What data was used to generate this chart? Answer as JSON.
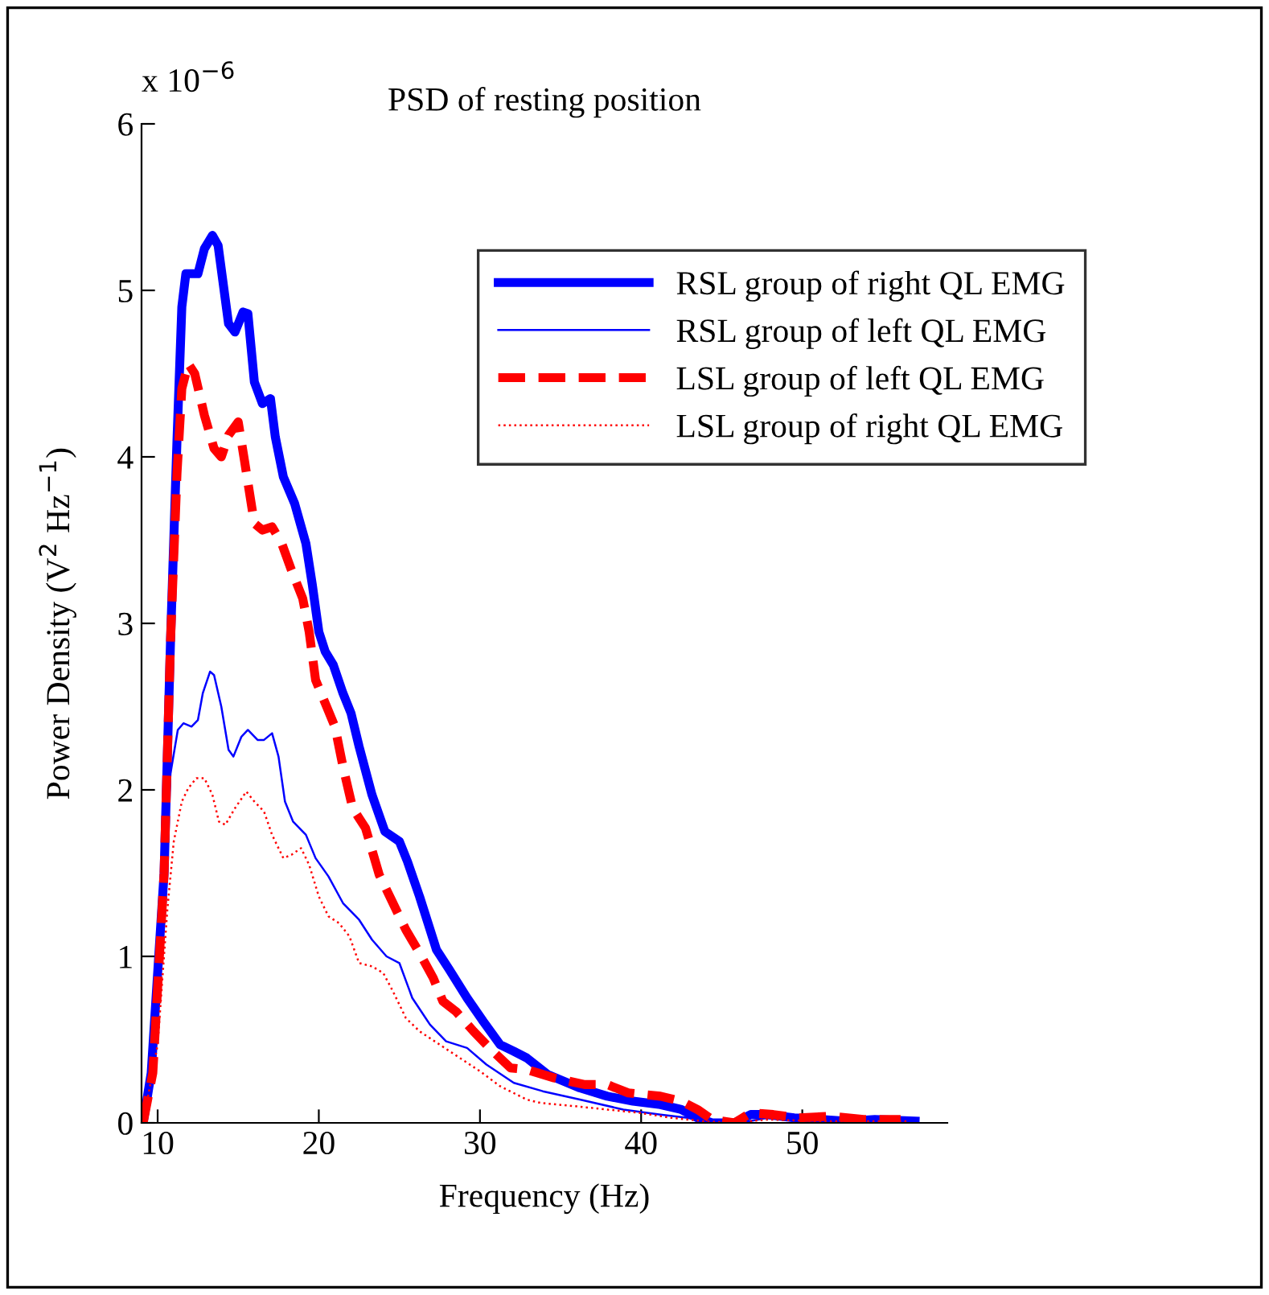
{
  "chart_data": {
    "type": "line",
    "title": "PSD of resting position",
    "xlabel": "Frequency (Hz)",
    "ylabel": "Power Density (V$^{2}$ Hz$^{−1}$)",
    "annotations": [
      "x 10$^{−6}$"
    ],
    "xlim": [
      9,
      59
    ],
    "xticks": [
      10,
      20,
      30,
      40,
      50
    ],
    "ylim": [
      0,
      6
    ],
    "yticks": [
      0,
      1,
      2,
      3,
      4,
      5,
      6
    ],
    "grid": false,
    "legend": "top right",
    "marker": "none",
    "series": [
      {
        "name": "RSL group of right QL EMG",
        "color": "#0000ff",
        "line_style": "solid",
        "x": [
          9.1,
          9.6,
          10.4,
          10.8,
          11.2,
          11.5,
          11.75,
          12.1,
          12.5,
          12.9,
          13.4,
          13.75,
          14.4,
          14.8,
          15.3,
          15.6,
          16.0,
          16.5,
          17.0,
          17.3,
          17.8,
          18.5,
          19.2,
          19.6,
          20.0,
          20.4,
          20.9,
          21.5,
          22.0,
          22.5,
          23.3,
          24.1,
          25.0,
          25.5,
          26.25,
          27.3,
          28.1,
          29.2,
          30.2,
          31.25,
          32.1,
          32.9,
          34.2,
          36.2,
          37.9,
          39.5,
          41.2,
          42.5,
          43.5,
          44.4,
          45.8,
          46.8,
          47.8,
          49.5,
          51.2,
          52.8,
          54.5,
          57
        ],
        "values": [
          0,
          0.3,
          1.5,
          2.9,
          4.1,
          4.9,
          5.1,
          5.1,
          5.1,
          5.25,
          5.33,
          5.27,
          4.8,
          4.75,
          4.87,
          4.86,
          4.45,
          4.32,
          4.35,
          4.12,
          3.88,
          3.72,
          3.48,
          3.23,
          2.95,
          2.83,
          2.75,
          2.58,
          2.46,
          2.26,
          1.97,
          1.75,
          1.69,
          1.57,
          1.36,
          1.04,
          0.92,
          0.75,
          0.61,
          0.47,
          0.43,
          0.39,
          0.29,
          0.21,
          0.16,
          0.13,
          0.11,
          0.08,
          0.03,
          0,
          0,
          0.05,
          0.05,
          0.03,
          0.02,
          0.01,
          0.02,
          0.01
        ]
      },
      {
        "name": "RSL group of left QL EMG",
        "color": "#0000ff",
        "line_style": "solid",
        "x": [
          9.1,
          9.8,
          10.8,
          11.25,
          11.6,
          12.1,
          12.5,
          12.8,
          13.25,
          13.5,
          13.95,
          14.4,
          14.7,
          15.2,
          15.6,
          16.2,
          16.6,
          17.1,
          17.5,
          17.9,
          18.4,
          19.2,
          19.8,
          20.6,
          21.5,
          22.5,
          23.3,
          24.2,
          25.0,
          25.8,
          26.9,
          27.9,
          29.2,
          30.4,
          32.1,
          33.9,
          36.2,
          38.9,
          41.2,
          42.9,
          44.2,
          46.2,
          47.8,
          51.2,
          54.5,
          57
        ],
        "values": [
          0,
          0.39,
          2.1,
          2.36,
          2.4,
          2.38,
          2.42,
          2.58,
          2.71,
          2.69,
          2.5,
          2.24,
          2.2,
          2.32,
          2.36,
          2.3,
          2.3,
          2.34,
          2.2,
          1.93,
          1.81,
          1.73,
          1.59,
          1.48,
          1.32,
          1.22,
          1.1,
          1.0,
          0.96,
          0.75,
          0.59,
          0.49,
          0.45,
          0.35,
          0.24,
          0.19,
          0.14,
          0.08,
          0.05,
          0.03,
          0,
          0,
          0.03,
          0.02,
          0.01,
          0.01
        ]
      },
      {
        "name": "LSL group of left QL EMG",
        "color": "#ff0000",
        "line_style": "dashed",
        "x": [
          9.1,
          9.7,
          10.4,
          10.8,
          11.2,
          11.5,
          11.9,
          12.3,
          12.9,
          13.5,
          13.95,
          14.4,
          15.0,
          15.4,
          16.0,
          16.5,
          17.1,
          17.7,
          18.3,
          19.0,
          19.4,
          19.8,
          20.4,
          21.0,
          21.5,
          22.1,
          22.9,
          23.75,
          24.6,
          25.4,
          26.25,
          27.1,
          27.7,
          28.5,
          29.6,
          30.8,
          31.9,
          32.9,
          34.6,
          36.5,
          37.9,
          39.2,
          41.2,
          42.5,
          43.5,
          44.4,
          45.8,
          46.8,
          48.2,
          49.8,
          51.8,
          53.8,
          56.1
        ],
        "values": [
          0,
          0.3,
          1.5,
          2.9,
          3.9,
          4.41,
          4.56,
          4.5,
          4.25,
          4.05,
          4.0,
          4.13,
          4.21,
          3.97,
          3.6,
          3.56,
          3.58,
          3.48,
          3.32,
          3.15,
          2.95,
          2.66,
          2.52,
          2.38,
          2.14,
          1.89,
          1.77,
          1.49,
          1.32,
          1.16,
          1.02,
          0.87,
          0.73,
          0.67,
          0.55,
          0.43,
          0.33,
          0.32,
          0.27,
          0.23,
          0.23,
          0.18,
          0.16,
          0.13,
          0.08,
          0.02,
          0,
          0.06,
          0.05,
          0.03,
          0.04,
          0.02,
          0.02
        ]
      },
      {
        "name": "LSL group of right QL EMG",
        "color": "#ff0000",
        "line_style": "dotted",
        "x": [
          9.1,
          10,
          10.6,
          11.0,
          11.5,
          11.9,
          12.4,
          12.9,
          13.4,
          13.8,
          14.2,
          14.8,
          15.5,
          16.0,
          16.6,
          17.1,
          17.8,
          18.3,
          18.9,
          19.4,
          20,
          20.6,
          21.25,
          21.9,
          22.5,
          23.3,
          24,
          24.6,
          25.4,
          26.25,
          27.5,
          28.75,
          30.0,
          31.25,
          32.9,
          33.75,
          35.9,
          37.9,
          39.9,
          41.9,
          43.9,
          45.8,
          47.8,
          51.2,
          56.5
        ],
        "values": [
          0,
          0.47,
          1.28,
          1.69,
          1.93,
          2.01,
          2.07,
          2.07,
          1.97,
          1.81,
          1.79,
          1.89,
          1.99,
          1.93,
          1.87,
          1.73,
          1.59,
          1.61,
          1.65,
          1.55,
          1.36,
          1.24,
          1.2,
          1.12,
          0.96,
          0.94,
          0.9,
          0.79,
          0.63,
          0.55,
          0.47,
          0.39,
          0.31,
          0.22,
          0.14,
          0.12,
          0.1,
          0.08,
          0.06,
          0.03,
          0.01,
          0,
          0.02,
          0.01,
          0.01
        ]
      }
    ]
  }
}
